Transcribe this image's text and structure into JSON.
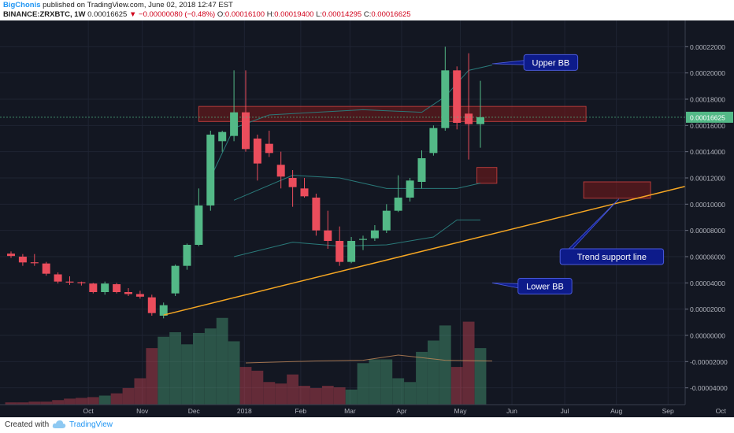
{
  "header": {
    "author": "BigChonis",
    "published_text": "published on TradingView.com, June 02, 2018 12:47 EST",
    "symbol": "BINANCE:ZRXBTC, 1W",
    "last": "0.00016625",
    "change": "▼ −0.00000080 (−0.48%)",
    "o_label": "O:",
    "o": "0.00016100",
    "h_label": "H:",
    "h": "0.00019400",
    "l_label": "L:",
    "l": "0.00014295",
    "c_label": "C:",
    "c": "0.00016625"
  },
  "footer": {
    "created": "Created with",
    "brand": "TradingView"
  },
  "colors": {
    "background": "#131722",
    "grid": "#1f2433",
    "up": "#53b987",
    "down": "#eb4d5c",
    "trendline": "#f5a623",
    "bb": "#2a7a7a",
    "label_bg": "#0d1b8a",
    "label_text": "#ffffff",
    "zone_fill": "#7a1a1a",
    "price_tag": "#53b987"
  },
  "chart_data": {
    "type": "candlestick",
    "title": "BINANCE:ZRXBTC, 1W",
    "x_ticks": [
      "Oct",
      "Nov",
      "Dec",
      "2018",
      "Feb",
      "Mar",
      "Apr",
      "May",
      "Jun",
      "Jul",
      "Aug",
      "Sep",
      "Oct"
    ],
    "y_ticks": [
      "0.00022000",
      "0.00020000",
      "0.00018000",
      "0.00016000",
      "0.00014000",
      "0.00012000",
      "0.00010000",
      "0.00008000",
      "0.00006000",
      "0.00004000",
      "0.00002000",
      "0.00000000",
      "-0.00002000",
      "-0.00004000"
    ],
    "ylim": [
      -4.8e-05,
      0.000234
    ],
    "current_price": "0.00016625",
    "candles": [
      {
        "o": 6.23e-05,
        "h": 6.4e-05,
        "l": 5.9e-05,
        "c": 6.05e-05,
        "v": 0.3
      },
      {
        "o": 6e-05,
        "h": 6.2e-05,
        "l": 5.3e-05,
        "c": 5.56e-05,
        "v": 0.3
      },
      {
        "o": 5.57e-05,
        "h": 6.2e-05,
        "l": 5.3e-05,
        "c": 5.51e-05,
        "v": 0.4
      },
      {
        "o": 5.48e-05,
        "h": 5.6e-05,
        "l": 4.55e-05,
        "c": 4.7e-05,
        "v": 0.4
      },
      {
        "o": 4.65e-05,
        "h": 4.8e-05,
        "l": 3.95e-05,
        "c": 4.1e-05,
        "v": 0.6
      },
      {
        "o": 4.1e-05,
        "h": 4.5e-05,
        "l": 3.85e-05,
        "c": 4.05e-05,
        "v": 0.8
      },
      {
        "o": 4.05e-05,
        "h": 4.1e-05,
        "l": 3.8e-05,
        "c": 4e-05,
        "v": 0.9
      },
      {
        "o": 3.95e-05,
        "h": 4e-05,
        "l": 3.2e-05,
        "c": 3.3e-05,
        "v": 1.0
      },
      {
        "o": 3.3e-05,
        "h": 4.1e-05,
        "l": 3.1e-05,
        "c": 3.95e-05,
        "v": 1.2
      },
      {
        "o": 3.9e-05,
        "h": 4e-05,
        "l": 3.2e-05,
        "c": 3.3e-05,
        "v": 1.5
      },
      {
        "o": 3.3e-05,
        "h": 3.6e-05,
        "l": 3e-05,
        "c": 3.15e-05,
        "v": 2.2
      },
      {
        "o": 3.15e-05,
        "h": 3.4e-05,
        "l": 2.8e-05,
        "c": 2.95e-05,
        "v": 3.5
      },
      {
        "o": 2.9e-05,
        "h": 3.1e-05,
        "l": 1.5e-05,
        "c": 1.7e-05,
        "v": 7.5
      },
      {
        "o": 1.5e-05,
        "h": 2.5e-05,
        "l": 1.3e-05,
        "c": 2.3e-05,
        "v": 9.0
      },
      {
        "o": 3.2e-05,
        "h": 5.4e-05,
        "l": 3e-05,
        "c": 5.3e-05,
        "v": 9.6
      },
      {
        "o": 5.3e-05,
        "h": 7e-05,
        "l": 5e-05,
        "c": 6.9e-05,
        "v": 8.0
      },
      {
        "o": 6.9e-05,
        "h": 0.000112,
        "l": 6.8e-05,
        "c": 9.9e-05,
        "v": 9.5
      },
      {
        "o": 9.9e-05,
        "h": 0.000156,
        "l": 9.5e-05,
        "c": 0.000153,
        "v": 10.1
      },
      {
        "o": 0.000148,
        "h": 0.000156,
        "l": 0.00014,
        "c": 0.000155,
        "v": 11.5
      },
      {
        "o": 0.000152,
        "h": 0.000202,
        "l": 0.000148,
        "c": 0.00017,
        "v": 8.4
      },
      {
        "o": 0.00017,
        "h": 0.000202,
        "l": 0.00014,
        "c": 0.000142,
        "v": 5.0
      },
      {
        "o": 0.00015,
        "h": 0.000153,
        "l": 0.000118,
        "c": 0.000131,
        "v": 4.5
      },
      {
        "o": 0.000146,
        "h": 0.000156,
        "l": 0.000136,
        "c": 0.000139,
        "v": 3.0
      },
      {
        "o": 0.00013,
        "h": 0.00014,
        "l": 0.000112,
        "c": 0.000121,
        "v": 2.8
      },
      {
        "o": 0.00012,
        "h": 0.000126,
        "l": 9.8e-05,
        "c": 0.000113,
        "v": 4.0
      },
      {
        "o": 0.000112,
        "h": 0.00012,
        "l": 0.000105,
        "c": 0.000106,
        "v": 2.5
      },
      {
        "o": 0.000105,
        "h": 0.000108,
        "l": 7.6e-05,
        "c": 8e-05,
        "v": 2.2
      },
      {
        "o": 8e-05,
        "h": 9.5e-05,
        "l": 6.6e-05,
        "c": 7.2e-05,
        "v": 2.5
      },
      {
        "o": 7.2e-05,
        "h": 8.3e-05,
        "l": 5.3e-05,
        "c": 5.6e-05,
        "v": 2.3
      },
      {
        "o": 5.6e-05,
        "h": 7.5e-05,
        "l": 5.5e-05,
        "c": 7.2e-05,
        "v": 2.0
      },
      {
        "o": 7.3e-05,
        "h": 7.6e-05,
        "l": 6.5e-05,
        "c": 7.35e-05,
        "v": 5.5
      },
      {
        "o": 7.4e-05,
        "h": 8.4e-05,
        "l": 7.2e-05,
        "c": 8e-05,
        "v": 6.0
      },
      {
        "o": 8e-05,
        "h": 0.0001,
        "l": 7.8e-05,
        "c": 9.5e-05,
        "v": 6.0
      },
      {
        "o": 9.5e-05,
        "h": 0.000122,
        "l": 9.4e-05,
        "c": 0.000105,
        "v": 3.5
      },
      {
        "o": 0.000105,
        "h": 0.00012,
        "l": 0.000102,
        "c": 0.000118,
        "v": 3.0
      },
      {
        "o": 0.000117,
        "h": 0.000141,
        "l": 0.000112,
        "c": 0.000135,
        "v": 7.0
      },
      {
        "o": 0.000139,
        "h": 0.00016,
        "l": 0.000137,
        "c": 0.000158,
        "v": 8.5
      },
      {
        "o": 0.000158,
        "h": 0.00022,
        "l": 0.000156,
        "c": 0.000202,
        "v": 10.5
      },
      {
        "o": 0.000202,
        "h": 0.000205,
        "l": 0.000157,
        "c": 0.000162,
        "v": 5.0
      },
      {
        "o": 0.000169,
        "h": 0.000215,
        "l": 0.000134,
        "c": 0.000161,
        "v": 11.0
      },
      {
        "o": 0.000161,
        "h": 0.000194,
        "l": 0.000143,
        "c": 0.0001663,
        "v": 7.5
      }
    ],
    "bollinger_upper": [
      [
        17,
        0.00012
      ],
      [
        19,
        0.000158
      ],
      [
        22,
        0.000168
      ],
      [
        30,
        0.000172
      ],
      [
        35,
        0.00017
      ],
      [
        37,
        0.000182
      ],
      [
        39,
        0.000202
      ],
      [
        41,
        0.000206
      ]
    ],
    "bollinger_lower": [
      [
        19,
        6e-05
      ],
      [
        24,
        7.1e-05
      ],
      [
        28,
        6.8e-05
      ],
      [
        32,
        6.9e-05
      ],
      [
        36,
        7.5e-05
      ],
      [
        38,
        8.8e-05
      ],
      [
        40,
        8.8e-05
      ]
    ],
    "bollinger_mid": [
      [
        19,
        0.000103
      ],
      [
        24,
        0.000122
      ],
      [
        28,
        0.00012
      ],
      [
        32,
        0.000112
      ],
      [
        36,
        0.000112
      ],
      [
        38,
        0.000112
      ],
      [
        40,
        0.000116
      ]
    ],
    "volume_ma": [
      [
        20,
        -2.1e-05
      ],
      [
        26,
        -1.95e-05
      ],
      [
        30,
        -1.9e-05
      ],
      [
        33,
        -1.5e-05
      ],
      [
        37,
        -1.9e-05
      ],
      [
        41,
        -1.95e-05
      ]
    ],
    "trendline": {
      "from": [
        13,
        1.55e-05
      ],
      "to": [
        64,
        0.000128
      ]
    },
    "zones": [
      {
        "from": 16,
        "to": 49,
        "low": 0.000163,
        "high": 0.0001745
      },
      {
        "from": 39.7,
        "to": 41.4,
        "low": 0.0001159,
        "high": 0.000128
      },
      {
        "from": 48.8,
        "to": 54.5,
        "low": 0.0001045,
        "high": 0.000117
      }
    ],
    "annotations": [
      {
        "text": "Upper BB",
        "at": [
          46,
          0.000208
        ],
        "pointer": [
          41,
          0.000207
        ]
      },
      {
        "text": "Trend support line",
        "at": [
          51.2,
          6e-05
        ],
        "pointer": [
          51.8,
          0.000104
        ]
      },
      {
        "text": "Lower BB",
        "at": [
          45.5,
          3.75e-05
        ],
        "pointer": [
          41,
          4e-05
        ]
      }
    ]
  }
}
